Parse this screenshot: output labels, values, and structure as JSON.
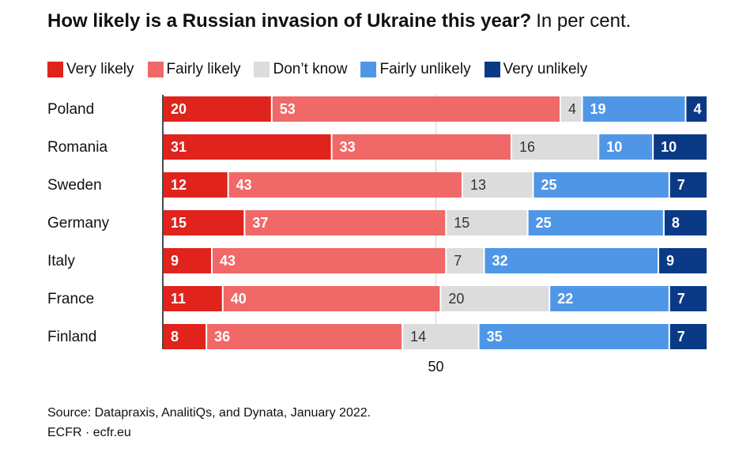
{
  "chart_data": {
    "type": "bar",
    "orientation": "horizontal",
    "stacked": true,
    "title": "How likely is a Russian invasion of Ukraine this year?",
    "subtitle": "In per cent.",
    "categories": [
      "Poland",
      "Romania",
      "Sweden",
      "Germany",
      "Italy",
      "France",
      "Finland"
    ],
    "series": [
      {
        "name": "Very likely",
        "color": "#e0231c",
        "label_color": "#ffffff",
        "values": [
          20,
          31,
          12,
          15,
          9,
          11,
          8
        ]
      },
      {
        "name": "Fairly likely",
        "color": "#f06868",
        "label_color": "#ffffff",
        "values": [
          53,
          33,
          43,
          37,
          43,
          40,
          36
        ]
      },
      {
        "name": "Don’t know",
        "color": "#dcdcdc",
        "label_color": "#333333",
        "values": [
          4,
          16,
          13,
          15,
          7,
          20,
          14
        ]
      },
      {
        "name": "Fairly unlikely",
        "color": "#4f97e6",
        "label_color": "#ffffff",
        "values": [
          19,
          10,
          25,
          25,
          32,
          22,
          35
        ]
      },
      {
        "name": "Very unlikely",
        "color": "#0a3a86",
        "label_color": "#ffffff",
        "values": [
          4,
          10,
          7,
          8,
          9,
          7,
          7
        ]
      }
    ],
    "xlim": [
      0,
      100
    ],
    "gridlines": [
      50
    ],
    "x_tick_labels": [
      "50"
    ],
    "legend_position": "top-left",
    "source": "Source: Datapraxis, AnalitiQs, and Dynata, January 2022.",
    "credit": "ECFR · ecfr.eu"
  }
}
